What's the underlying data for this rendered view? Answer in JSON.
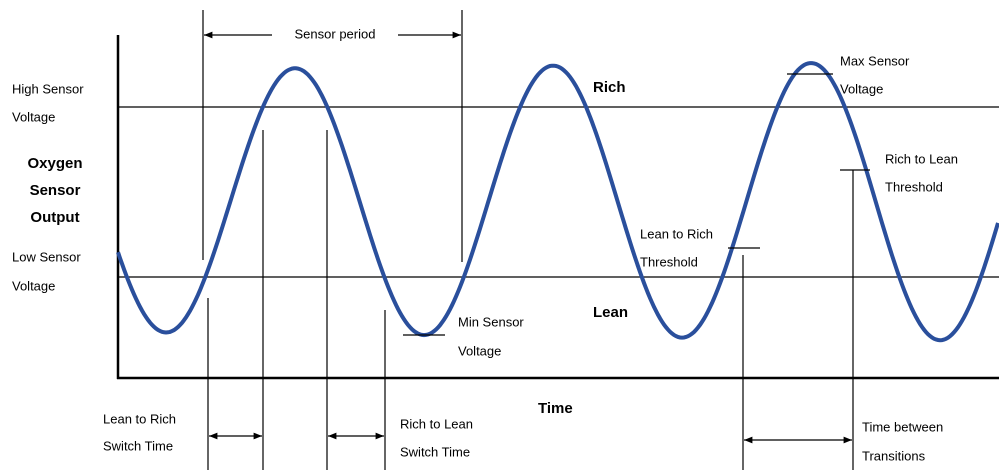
{
  "axis_labels": {
    "y": [
      "Oxygen",
      "Sensor",
      "Output"
    ],
    "x": "Time"
  },
  "levels": {
    "high": [
      "High Sensor",
      "Voltage"
    ],
    "low": [
      "Low Sensor",
      "Voltage"
    ]
  },
  "zones": {
    "rich": "Rich",
    "lean": "Lean"
  },
  "annotations": {
    "sensor_period": "Sensor period",
    "max_voltage": [
      "Max Sensor",
      "Voltage"
    ],
    "min_voltage": [
      "Min Sensor",
      "Voltage"
    ],
    "rich_to_lean_threshold": [
      "Rich to Lean",
      "Threshold"
    ],
    "lean_to_rich_threshold": [
      "Lean to Rich",
      "Threshold"
    ],
    "lean_to_rich_switch": [
      "Lean to Rich",
      "Switch Time"
    ],
    "rich_to_lean_switch": [
      "Rich to Lean",
      "Switch Time"
    ],
    "time_between": [
      "Time between",
      "Transitions"
    ]
  }
}
